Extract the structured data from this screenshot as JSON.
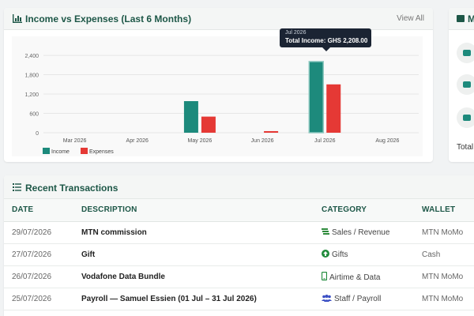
{
  "chart_card": {
    "title": "Income vs Expenses (Last 6 Months)",
    "view_all": "View All",
    "tooltip": {
      "month": "Jul 2026",
      "label": "Total Income: GHS 2,208.00"
    }
  },
  "side_card": {
    "title": "M",
    "total_label": "Total"
  },
  "chart_data": {
    "type": "bar",
    "categories": [
      "Mar 2026",
      "Apr 2026",
      "May 2026",
      "Jun 2026",
      "Jul 2026",
      "Aug 2026"
    ],
    "series": [
      {
        "name": "Income",
        "color": "#1d8a7c",
        "values": [
          0,
          0,
          980,
          0,
          2208,
          0
        ]
      },
      {
        "name": "Expenses",
        "color": "#e53935",
        "values": [
          0,
          0,
          500,
          50,
          1500,
          0
        ]
      }
    ],
    "yticks": [
      0,
      600,
      1200,
      1800,
      2400
    ],
    "ytick_labels": [
      "0",
      "600",
      "1,200",
      "1,800",
      "2,400"
    ],
    "ylim": [
      0,
      2500
    ],
    "grid": true,
    "legend": "bottom-left"
  },
  "transactions": {
    "title": "Recent Transactions",
    "columns": [
      "DATE",
      "DESCRIPTION",
      "CATEGORY",
      "WALLET"
    ],
    "rows": [
      {
        "date": "29/07/2026",
        "description": "MTN commission",
        "category": "Sales / Revenue",
        "icon": "money-icon",
        "wallet": "MTN MoMo"
      },
      {
        "date": "27/07/2026",
        "description": "Gift",
        "category": "Gifts",
        "icon": "arrow-up-circle-icon",
        "wallet": "Cash"
      },
      {
        "date": "26/07/2026",
        "description": "Vodafone Data Bundle",
        "category": "Airtime & Data",
        "icon": "mobile-icon",
        "wallet": "MTN MoMo"
      },
      {
        "date": "25/07/2026",
        "description": "Payroll — Samuel Essien (01 Jul – 31 Jul 2026)",
        "category": "Staff / Payroll",
        "icon": "users-icon",
        "wallet": "MTN MoMo"
      }
    ]
  }
}
